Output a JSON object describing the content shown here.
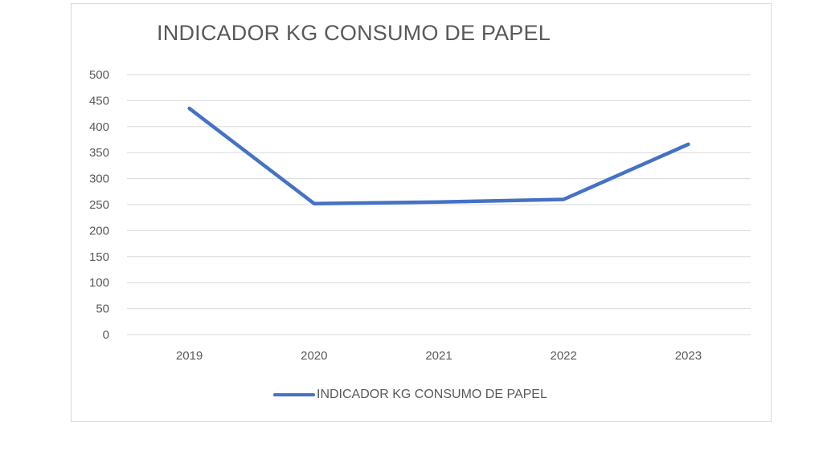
{
  "chart_data": {
    "type": "line",
    "title": "INDICADOR KG CONSUMO DE PAPEL",
    "categories": [
      "2019",
      "2020",
      "2021",
      "2022",
      "2023"
    ],
    "series": [
      {
        "name": "INDICADOR KG CONSUMO DE PAPEL",
        "values": [
          435,
          252,
          255,
          260,
          366
        ],
        "color": "#4472c4"
      }
    ],
    "ylim": [
      0,
      500
    ],
    "yticks": [
      0,
      50,
      100,
      150,
      200,
      250,
      300,
      350,
      400,
      450,
      500
    ],
    "grid": true,
    "legend_position": "bottom"
  }
}
